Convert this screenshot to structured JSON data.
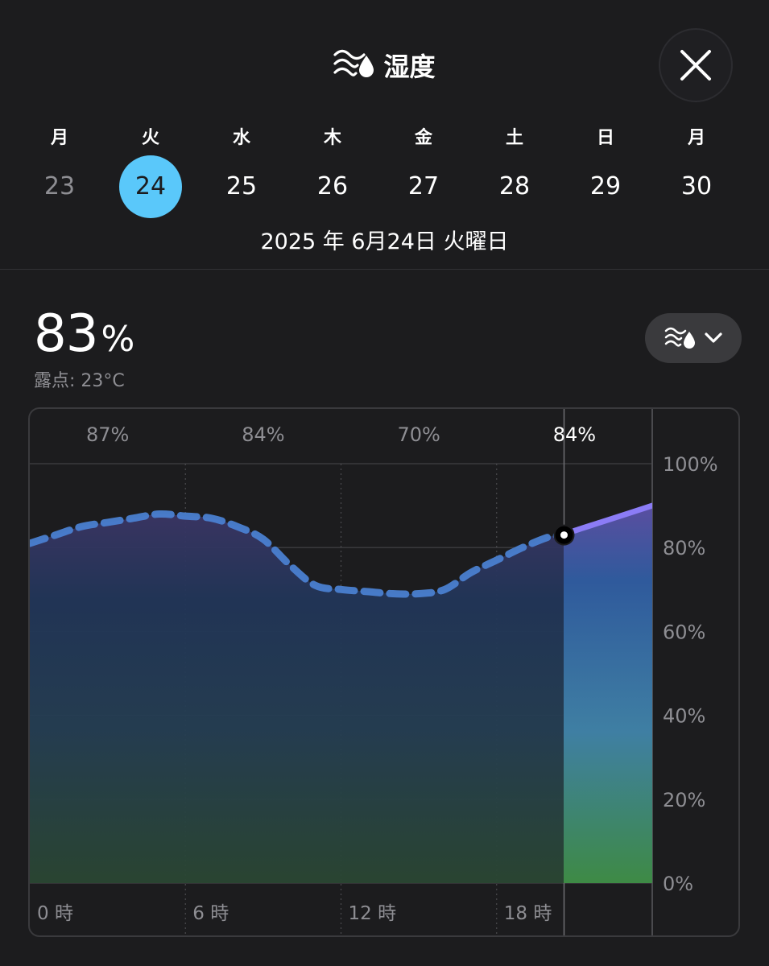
{
  "header": {
    "title": "湿度",
    "icon": "humidity-icon"
  },
  "close_button": {
    "icon": "close-icon"
  },
  "week": [
    {
      "weekday": "月",
      "date": "23",
      "state": "past"
    },
    {
      "weekday": "火",
      "date": "24",
      "state": "selected"
    },
    {
      "weekday": "水",
      "date": "25",
      "state": "future"
    },
    {
      "weekday": "木",
      "date": "26",
      "state": "future"
    },
    {
      "weekday": "金",
      "date": "27",
      "state": "future"
    },
    {
      "weekday": "土",
      "date": "28",
      "state": "future"
    },
    {
      "weekday": "日",
      "date": "29",
      "state": "future"
    },
    {
      "weekday": "月",
      "date": "30",
      "state": "future"
    }
  ],
  "selected_date_full": "2025 年 6月24日 火曜日",
  "current": {
    "value": "83",
    "unit": "%",
    "dewpoint": "露点: 23°C"
  },
  "dropdown": {
    "icon": "humidity-icon",
    "chevron": "chevron-down-icon"
  },
  "colors": {
    "accent": "#5ac8fa",
    "line_past": "#4a7fd0",
    "line_future": "#8b7cf6",
    "background": "#1c1c1e"
  },
  "chart_data": {
    "type": "area",
    "title": "",
    "xlabel": "",
    "ylabel": "",
    "ylim": [
      0,
      100
    ],
    "xlim": [
      0,
      24
    ],
    "y_ticks": [
      "100%",
      "80%",
      "60%",
      "40%",
      "20%",
      "0%"
    ],
    "x_ticks": [
      "0 時",
      "6 時",
      "12 時",
      "18 時"
    ],
    "period_labels": [
      "87%",
      "84%",
      "70%",
      "84%"
    ],
    "current_hour": 20.6,
    "current_value": 83,
    "grid": true,
    "series": [
      {
        "x": [
          0,
          1,
          2,
          3,
          4,
          5,
          6,
          7,
          8,
          9,
          10,
          11,
          12,
          13,
          14,
          15,
          16,
          17,
          18,
          19,
          20,
          20.6,
          21,
          22,
          23,
          24
        ],
        "values": [
          81,
          83,
          85,
          86,
          87,
          88,
          87.5,
          87,
          85,
          82,
          76,
          71,
          70,
          69.5,
          69,
          69,
          70,
          74,
          77,
          80,
          82.5,
          83,
          84,
          86,
          88,
          90
        ]
      }
    ]
  }
}
